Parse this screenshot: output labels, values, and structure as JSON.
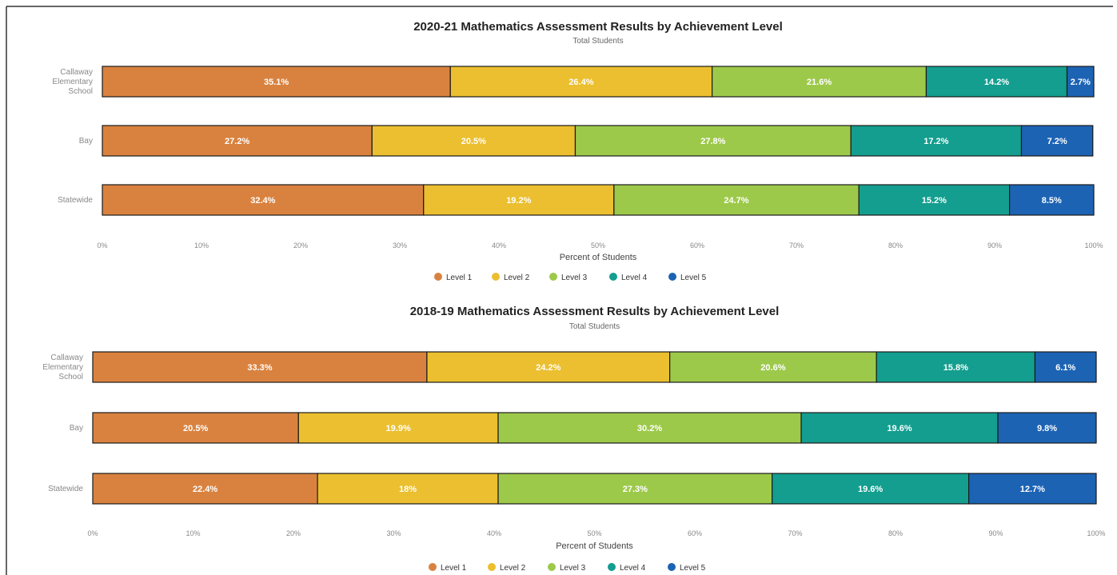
{
  "colors": {
    "level_1": "#d9823f",
    "level_2": "#ebbf2f",
    "level_3": "#9dc94a",
    "level_4": "#139e8f",
    "level_5": "#1c63b4"
  },
  "chart_data": [
    {
      "type": "bar",
      "orientation": "horizontal",
      "stacked": true,
      "title": "2020-21 Mathematics Assessment Results by Achievement Level",
      "subtitle": "Total Students",
      "xlabel": "Percent of Students",
      "xlim": [
        0,
        100
      ],
      "x_ticks": [
        "0%",
        "10%",
        "20%",
        "30%",
        "40%",
        "50%",
        "60%",
        "70%",
        "80%",
        "90%",
        "100%"
      ],
      "categories": [
        "Callaway Elementary School",
        "Bay",
        "Statewide"
      ],
      "series": [
        {
          "name": "Level 1",
          "values": [
            35.1,
            27.2,
            32.4
          ],
          "labels": [
            "35.1%",
            "27.2%",
            "32.4%"
          ]
        },
        {
          "name": "Level 2",
          "values": [
            26.4,
            20.5,
            19.2
          ],
          "labels": [
            "26.4%",
            "20.5%",
            "19.2%"
          ]
        },
        {
          "name": "Level 3",
          "values": [
            21.6,
            27.8,
            24.7
          ],
          "labels": [
            "21.6%",
            "27.8%",
            "24.7%"
          ]
        },
        {
          "name": "Level 4",
          "values": [
            14.2,
            17.2,
            15.2
          ],
          "labels": [
            "14.2%",
            "17.2%",
            "15.2%"
          ]
        },
        {
          "name": "Level 5",
          "values": [
            2.7,
            7.2,
            8.5
          ],
          "labels": [
            "2.7%",
            "7.2%",
            "8.5%"
          ]
        }
      ],
      "legend": "bottom"
    },
    {
      "type": "bar",
      "orientation": "horizontal",
      "stacked": true,
      "title": "2018-19 Mathematics Assessment Results by Achievement Level",
      "subtitle": "Total Students",
      "xlabel": "Percent of Students",
      "xlim": [
        0,
        100
      ],
      "x_ticks": [
        "0%",
        "10%",
        "20%",
        "30%",
        "40%",
        "50%",
        "60%",
        "70%",
        "80%",
        "90%",
        "100%"
      ],
      "categories": [
        "Callaway Elementary School",
        "Bay",
        "Statewide"
      ],
      "series": [
        {
          "name": "Level 1",
          "values": [
            33.3,
            20.5,
            22.4
          ],
          "labels": [
            "33.3%",
            "20.5%",
            "22.4%"
          ]
        },
        {
          "name": "Level 2",
          "values": [
            24.2,
            19.9,
            18
          ],
          "labels": [
            "24.2%",
            "19.9%",
            "18%"
          ]
        },
        {
          "name": "Level 3",
          "values": [
            20.6,
            30.2,
            27.3
          ],
          "labels": [
            "20.6%",
            "30.2%",
            "27.3%"
          ]
        },
        {
          "name": "Level 4",
          "values": [
            15.8,
            19.6,
            19.6
          ],
          "labels": [
            "15.8%",
            "19.6%",
            "19.6%"
          ]
        },
        {
          "name": "Level 5",
          "values": [
            6.1,
            9.8,
            12.7
          ],
          "labels": [
            "6.1%",
            "9.8%",
            "12.7%"
          ]
        }
      ],
      "legend": "bottom"
    }
  ]
}
